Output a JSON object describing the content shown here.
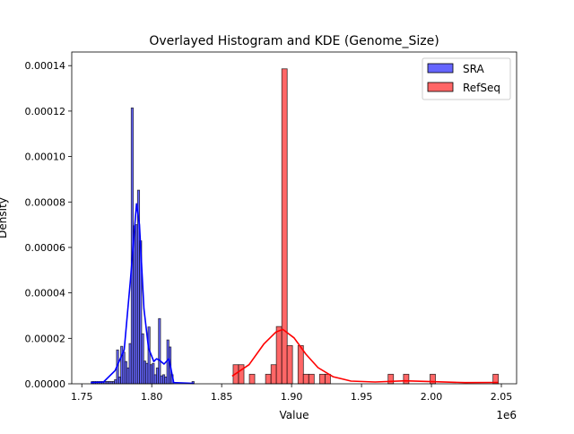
{
  "chart_data": {
    "type": "bar",
    "title": "Overlayed Histogram and KDE (Genome_Size)",
    "xlabel": "Value",
    "ylabel": "Density",
    "x_offset_label": "1e6",
    "xlim": [
      1.7428,
      2.0609
    ],
    "ylim": [
      0,
      0.000146
    ],
    "x_ticks": [
      1.75,
      1.8,
      1.85,
      1.9,
      1.95,
      2.0,
      2.05
    ],
    "x_tick_labels": [
      "1.75",
      "1.80",
      "1.85",
      "1.90",
      "1.95",
      "2.00",
      "2.05"
    ],
    "y_ticks": [
      0,
      2e-05,
      4e-05,
      6e-05,
      8e-05,
      0.0001,
      0.00012,
      0.00014
    ],
    "y_tick_labels": [
      "0.00000",
      "0.00002",
      "0.00004",
      "0.00006",
      "0.00008",
      "0.00010",
      "0.00012",
      "0.00014"
    ],
    "grid": false,
    "legend_position": "top-right",
    "series": [
      {
        "name": "SRA",
        "color": "#0000ff",
        "fill": "#6666ff",
        "bin_start": 1.7568,
        "bin_width": 0.0015,
        "densities": [
          1e-06,
          1e-06,
          1e-06,
          1e-06,
          1e-06,
          1e-06,
          1e-06,
          1e-06,
          1e-06,
          1e-06,
          1e-06,
          1.8e-06,
          1.49e-05,
          3e-06,
          1.65e-05,
          1.39e-05,
          9.8e-06,
          7e-06,
          1.77e-05,
          0.0001214,
          6.95e-05,
          7e-05,
          8.52e-05,
          6.29e-05,
          2.2e-05,
          1e-05,
          9e-06,
          2.5e-05,
          8.4e-06,
          9e-06,
          4e-06,
          7e-06,
          2.87e-05,
          3.5e-06,
          4e-06,
          3e-06,
          1.93e-05,
          1.62e-05,
          4e-06,
          0,
          0,
          0,
          0,
          0,
          0,
          0,
          0,
          0,
          1e-06
        ],
        "kde": [
          [
            1.7564,
            5e-07
          ],
          [
            1.7655,
            8e-07
          ],
          [
            1.7738,
            5.8e-06
          ],
          [
            1.7803,
            1.5e-05
          ],
          [
            1.7848,
            4.6e-05
          ],
          [
            1.7891,
            7.92e-05
          ],
          [
            1.7912,
            7e-05
          ],
          [
            1.7944,
            3.3e-05
          ],
          [
            1.7977,
            1.57e-05
          ],
          [
            1.8015,
            9.8e-06
          ],
          [
            1.8035,
            1.1e-05
          ],
          [
            1.8052,
            1.05e-05
          ],
          [
            1.8088,
            8.7e-06
          ],
          [
            1.8123,
            1.1e-05
          ],
          [
            1.8157,
            5e-07
          ],
          [
            1.83,
            2e-07
          ]
        ]
      },
      {
        "name": "RefSeq",
        "color": "#ff0000",
        "fill": "#ff6666",
        "bin_width": 0.00386,
        "bars": [
          [
            1.8582,
            8.4e-06
          ],
          [
            1.8621,
            8.4e-06
          ],
          [
            1.8698,
            4.2e-06
          ],
          [
            1.8814,
            4.2e-06
          ],
          [
            1.8853,
            8.4e-06
          ],
          [
            1.8891,
            2.52e-05
          ],
          [
            1.893,
            0.0001386
          ],
          [
            1.8968,
            1.68e-05
          ],
          [
            1.9046,
            1.68e-05
          ],
          [
            1.9084,
            4.2e-06
          ],
          [
            1.9123,
            4.2e-06
          ],
          [
            1.92,
            4.2e-06
          ],
          [
            1.9239,
            4.2e-06
          ],
          [
            1.969,
            4.2e-06
          ],
          [
            1.98,
            4.2e-06
          ],
          [
            1.999,
            4.2e-06
          ],
          [
            2.044,
            4.2e-06
          ]
        ],
        "kde": [
          [
            1.8575,
            3.4e-06
          ],
          [
            1.8696,
            8.4e-06
          ],
          [
            1.8803,
            1.76e-05
          ],
          [
            1.8889,
            2.28e-05
          ],
          [
            1.8938,
            2.39e-05
          ],
          [
            1.9018,
            2.02e-05
          ],
          [
            1.9103,
            1.3e-05
          ],
          [
            1.9189,
            7.1e-06
          ],
          [
            1.9296,
            3.1e-06
          ],
          [
            1.9425,
            1.2e-06
          ],
          [
            1.9597,
            8e-07
          ],
          [
            1.9812,
            1.3e-06
          ],
          [
            2.0026,
            9e-07
          ],
          [
            2.0241,
            5e-07
          ],
          [
            2.0477,
            6e-07
          ]
        ]
      }
    ]
  }
}
